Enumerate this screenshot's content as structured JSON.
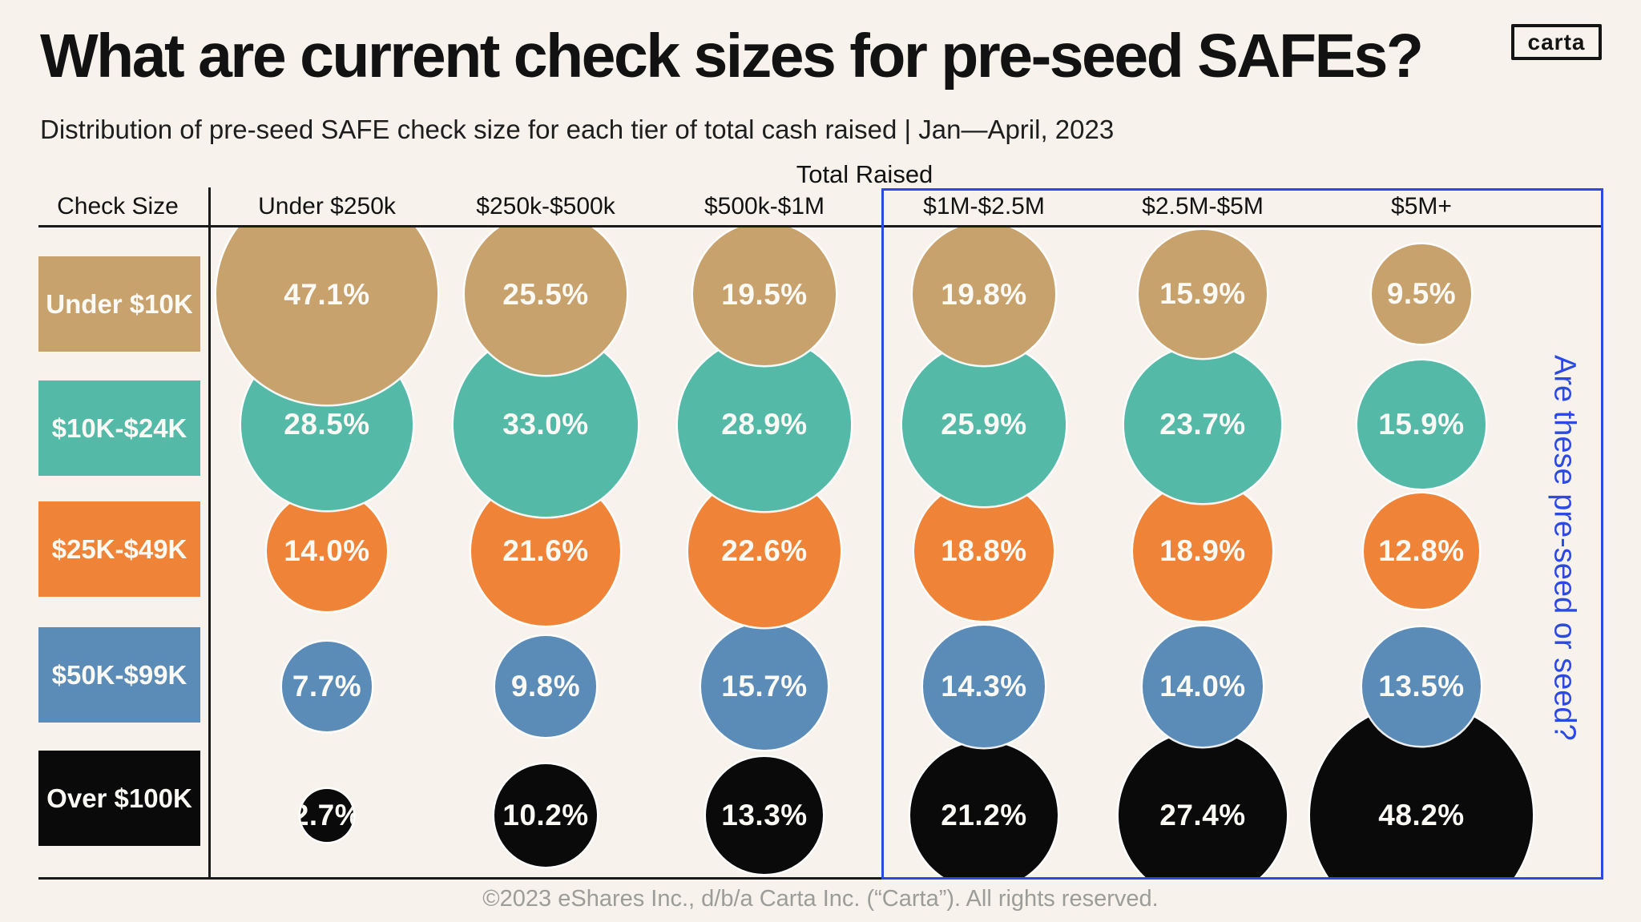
{
  "header": {
    "title": "What are current check sizes for pre-seed SAFEs?",
    "subtitle": "Distribution of pre-seed SAFE check size for each tier of total cash raised | Jan—April, 2023",
    "logo": "carta"
  },
  "chart_data": {
    "type": "bubble",
    "title": "What are current check sizes for pre-seed SAFEs?",
    "x_title": "Total Raised",
    "y_title": "Check Size",
    "categories": [
      "Under $250k",
      "$250k-$500k",
      "$500k-$1M",
      "$1M-$2.5M",
      "$2.5M-$5M",
      "$5M+"
    ],
    "value_suffix": "%",
    "series": [
      {
        "name": "Under $10K",
        "color": "#C8A26D",
        "values": [
          47.1,
          25.5,
          19.5,
          19.8,
          15.9,
          9.5
        ]
      },
      {
        "name": "$10K-$24K",
        "color": "#55B9A8",
        "values": [
          28.5,
          33.0,
          28.9,
          25.9,
          23.7,
          15.9
        ]
      },
      {
        "name": "$25K-$49K",
        "color": "#EF8439",
        "values": [
          14.0,
          21.6,
          22.6,
          18.8,
          18.9,
          12.8
        ]
      },
      {
        "name": "$50K-$99K",
        "color": "#5B8CB8",
        "values": [
          7.7,
          9.8,
          15.7,
          14.3,
          14.0,
          13.5
        ]
      },
      {
        "name": "Over $100K",
        "color": "#0A0A0A",
        "values": [
          2.7,
          10.2,
          13.3,
          21.2,
          27.4,
          48.2
        ]
      }
    ],
    "annotation": {
      "text": "Are these pre-seed or seed?",
      "color": "#2B4AE2"
    },
    "layout_hints": {
      "bubble_area_proportional_to_value": true,
      "grid": "off",
      "annotation_box_spans_last_3_columns": true
    }
  },
  "colors": {
    "background": "#F7F2EB",
    "line": "#1A1A1A",
    "accent_blue": "#2B4AE2",
    "footer_gray": "#9C9C98"
  },
  "footer": {
    "copyright": "©2023 eShares Inc., d/b/a Carta Inc. (“Carta”). All rights reserved."
  }
}
